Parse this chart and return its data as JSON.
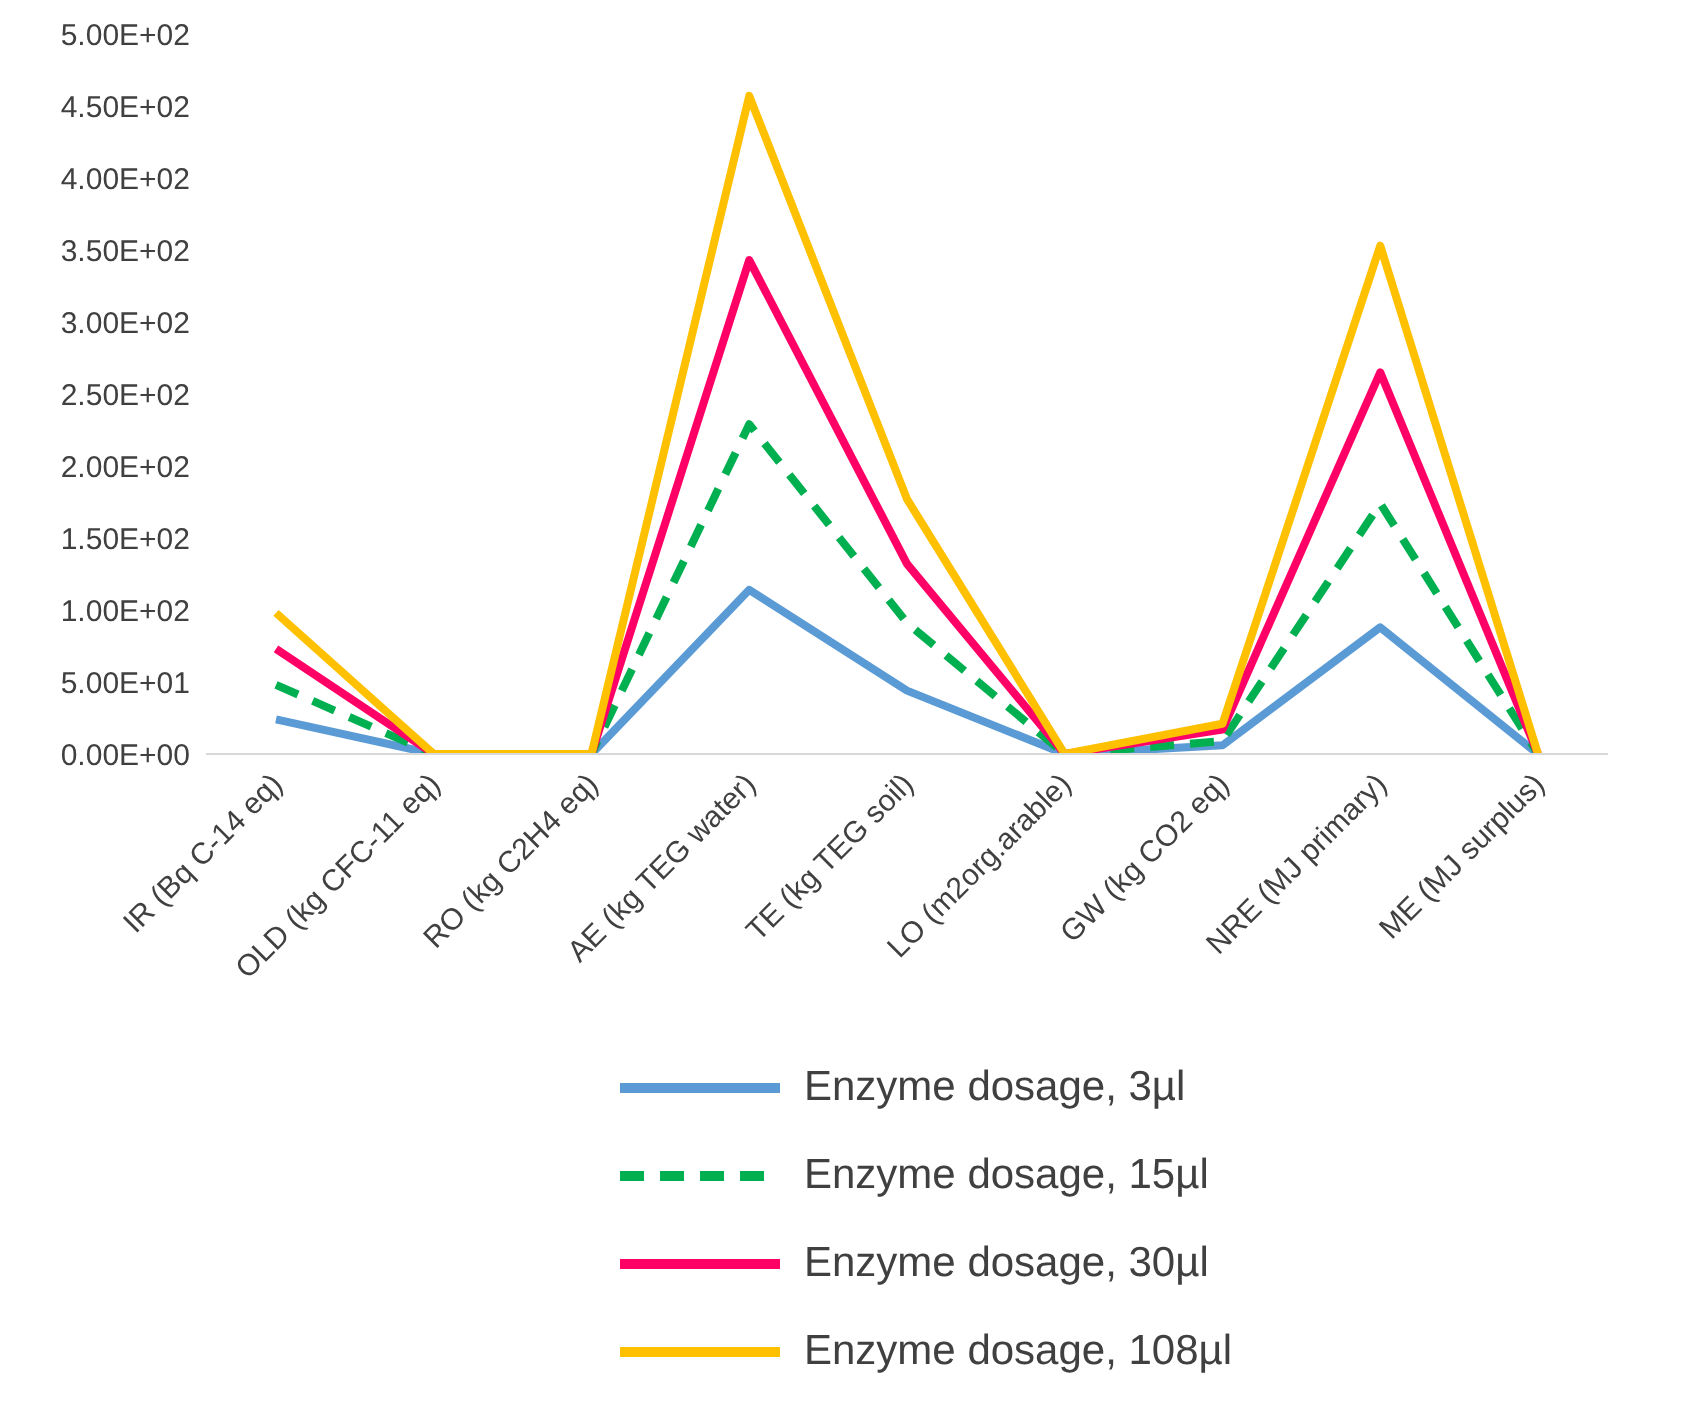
{
  "chart_data": {
    "type": "line",
    "categories": [
      "IR (Bq C-14 eq)",
      "OLD (kg CFC-11 eq)",
      "RO (kg C2H4 eq)",
      "AE (kg TEG water)",
      "TE (kg TEG soil)",
      "LO (m2org.arable)",
      "GW (kg CO2 eq)",
      "NRE (MJ primary)",
      "ME (MJ surplus)"
    ],
    "series": [
      {
        "name": "Enzyme dosage, 3µl",
        "color": "#5b9bd5",
        "values": [
          24,
          0,
          0,
          114,
          44,
          0,
          6,
          88,
          0
        ]
      },
      {
        "name": "Enzyme dosage, 15µl",
        "color": "#00b050",
        "line_style": "dashed",
        "values": [
          48,
          0,
          0,
          229,
          91,
          0,
          9,
          174,
          0
        ]
      },
      {
        "name": "Enzyme dosage, 30µl",
        "color": "#ff0066",
        "values": [
          73,
          0,
          0,
          343,
          132,
          0,
          17,
          265,
          0
        ]
      },
      {
        "name": "Enzyme dosage, 108µl",
        "color": "#ffc000",
        "values": [
          98,
          0,
          0,
          457,
          177,
          0,
          21,
          353,
          0
        ]
      }
    ],
    "ylim": [
      0,
      500
    ],
    "yticks": [
      {
        "value": 0,
        "label": "0.00E+00"
      },
      {
        "value": 50,
        "label": "5.00E+01"
      },
      {
        "value": 100,
        "label": "1.00E+02"
      },
      {
        "value": 150,
        "label": "1.50E+02"
      },
      {
        "value": 200,
        "label": "2.00E+02"
      },
      {
        "value": 250,
        "label": "2.50E+02"
      },
      {
        "value": 300,
        "label": "3.00E+02"
      },
      {
        "value": 350,
        "label": "3.50E+02"
      },
      {
        "value": 400,
        "label": "4.00E+02"
      },
      {
        "value": 450,
        "label": "4.50E+02"
      },
      {
        "value": 500,
        "label": "5.00E+02"
      }
    ],
    "grid": false,
    "legend": "bottom",
    "marker": "none",
    "line_style": "solid"
  }
}
